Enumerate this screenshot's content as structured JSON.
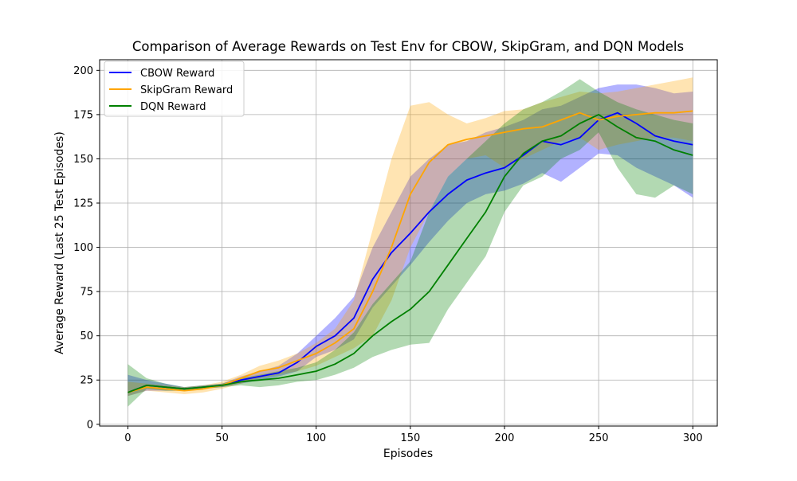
{
  "chart_data": {
    "type": "line",
    "title": "Comparison of Average Rewards on Test Env for CBOW, SkipGram, and DQN Models",
    "xlabel": "Episodes",
    "ylabel": "Average Reward (Last 25 Test Episodes)",
    "xlim": [
      -15,
      313
    ],
    "ylim": [
      -1,
      206
    ],
    "x_ticks": [
      0,
      50,
      100,
      150,
      200,
      250,
      300
    ],
    "y_ticks": [
      0,
      25,
      50,
      75,
      100,
      125,
      150,
      175,
      200
    ],
    "grid": true,
    "legend_position": "top-left",
    "x": [
      0,
      10,
      20,
      30,
      40,
      50,
      60,
      70,
      80,
      90,
      100,
      110,
      120,
      130,
      140,
      150,
      160,
      170,
      180,
      190,
      200,
      210,
      220,
      230,
      240,
      250,
      260,
      270,
      280,
      290,
      300
    ],
    "series": [
      {
        "name": "CBOW Reward",
        "color": "#0000ff",
        "values": [
          18,
          22,
          21,
          20,
          21,
          22,
          25,
          27,
          29,
          35,
          44,
          50,
          60,
          82,
          97,
          108,
          120,
          130,
          138,
          142,
          145,
          152,
          160,
          158,
          162,
          172,
          176,
          170,
          163,
          160,
          158
        ],
        "lower": [
          16,
          19,
          19,
          19,
          20,
          21,
          23,
          25,
          27,
          30,
          38,
          42,
          48,
          66,
          78,
          90,
          103,
          115,
          125,
          130,
          132,
          136,
          142,
          137,
          145,
          153,
          152,
          145,
          140,
          135,
          128
        ],
        "upper": [
          28,
          25,
          23,
          21,
          22,
          23,
          27,
          30,
          33,
          40,
          50,
          60,
          72,
          100,
          120,
          140,
          150,
          158,
          160,
          165,
          168,
          172,
          178,
          180,
          185,
          190,
          192,
          192,
          190,
          187,
          188
        ]
      },
      {
        "name": "SkipGram Reward",
        "color": "#ffa500",
        "values": [
          18,
          21,
          20,
          19,
          20,
          22,
          26,
          30,
          32,
          36,
          40,
          46,
          54,
          75,
          100,
          130,
          148,
          158,
          161,
          163,
          165,
          167,
          168,
          172,
          176,
          172,
          174,
          175,
          176,
          176,
          177
        ],
        "lower": [
          16,
          19,
          18,
          17,
          18,
          20,
          23,
          26,
          28,
          30,
          33,
          38,
          43,
          50,
          70,
          100,
          120,
          140,
          150,
          152,
          145,
          150,
          155,
          160,
          162,
          155,
          158,
          160,
          162,
          162,
          160
        ],
        "upper": [
          24,
          23,
          22,
          21,
          22,
          24,
          28,
          33,
          36,
          40,
          46,
          54,
          70,
          110,
          150,
          180,
          182,
          175,
          170,
          173,
          177,
          178,
          182,
          185,
          188,
          187,
          188,
          190,
          192,
          194,
          196
        ]
      },
      {
        "name": "DQN Reward",
        "color": "#008000",
        "values": [
          18,
          22,
          21,
          20,
          21,
          22,
          24,
          25,
          26,
          28,
          30,
          34,
          40,
          50,
          58,
          65,
          75,
          90,
          105,
          120,
          140,
          153,
          160,
          163,
          170,
          175,
          168,
          162,
          160,
          155,
          152
        ],
        "lower": [
          10,
          20,
          19,
          19,
          20,
          21,
          22,
          21,
          22,
          24,
          25,
          28,
          32,
          38,
          42,
          45,
          46,
          65,
          80,
          95,
          120,
          135,
          140,
          150,
          155,
          165,
          145,
          130,
          128,
          135,
          130
        ],
        "upper": [
          34,
          26,
          23,
          21,
          22,
          23,
          26,
          28,
          30,
          32,
          35,
          42,
          52,
          68,
          80,
          92,
          120,
          140,
          150,
          160,
          170,
          178,
          182,
          188,
          195,
          188,
          182,
          178,
          175,
          172,
          170
        ]
      }
    ]
  }
}
